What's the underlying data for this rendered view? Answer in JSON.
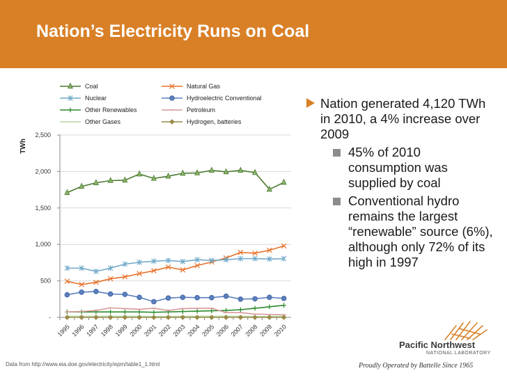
{
  "slide": {
    "title": "Nation’s Electricity Runs on Coal",
    "source_note": "Data from http://www.eia.doe.gov/electricity/epm/table1_1.html"
  },
  "bullets": {
    "main": "Nation generated 4,120 TWh in 2010, a 4% increase over 2009",
    "sub": [
      "45% of 2010 consumption was supplied by coal",
      "Conventional hydro remains the largest “renewable” source (6%), although only 72% of its high in 1997"
    ]
  },
  "logo": {
    "name": "Pacific Northwest",
    "lab": "NATIONAL LABORATORY",
    "tagline": "Proudly Operated by Battelle Since 1965"
  },
  "colors": {
    "title_bar": "#d98027",
    "bullet_triangle": "#d98027"
  },
  "chart_data": {
    "type": "line",
    "ylabel": "TWh",
    "ylim": [
      0,
      2500
    ],
    "yticks": [
      0,
      500,
      1000,
      1500,
      2000,
      2500
    ],
    "ytick_labels": [
      "-",
      "500",
      "1,000",
      "1,500",
      "2,000",
      "2,500"
    ],
    "x": [
      "1995",
      "1996",
      "1997",
      "1998",
      "1999",
      "2000",
      "2001",
      "2002",
      "2003",
      "2004",
      "2005",
      "2006",
      "2007",
      "2008",
      "2009",
      "2010"
    ],
    "legend_position": "top",
    "series": [
      {
        "name": "Coal",
        "color": "#4a7a2e",
        "marker": "triangle",
        "values": [
          1710,
          1795,
          1845,
          1875,
          1880,
          1965,
          1905,
          1935,
          1975,
          1980,
          2015,
          1995,
          2015,
          1985,
          1755,
          1850
        ]
      },
      {
        "name": "Natural Gas",
        "color": "#e8712a",
        "marker": "x",
        "values": [
          495,
          450,
          480,
          530,
          555,
          600,
          640,
          690,
          650,
          710,
          760,
          815,
          890,
          880,
          920,
          980
        ]
      },
      {
        "name": "Nuclear",
        "color": "#6fa9c9",
        "marker": "star",
        "values": [
          675,
          675,
          630,
          675,
          730,
          755,
          770,
          780,
          765,
          790,
          780,
          790,
          805,
          805,
          800,
          805
        ]
      },
      {
        "name": "Hydroelectric Conventional",
        "color": "#5b7fbe",
        "marker": "circle",
        "values": [
          310,
          345,
          355,
          320,
          315,
          275,
          215,
          265,
          275,
          270,
          270,
          290,
          250,
          255,
          275,
          260
        ]
      },
      {
        "name": "Other Renewables",
        "color": "#2a8a2a",
        "marker": "plus",
        "values": [
          75,
          75,
          75,
          75,
          75,
          75,
          70,
          75,
          80,
          85,
          90,
          95,
          105,
          125,
          145,
          165
        ]
      },
      {
        "name": "Petroleum",
        "color": "#d99a9a",
        "marker": "dash",
        "values": [
          75,
          80,
          95,
          130,
          120,
          110,
          125,
          95,
          120,
          125,
          125,
          65,
          65,
          45,
          40,
          35
        ]
      },
      {
        "name": "Other Gases",
        "color": "#b5d6a0",
        "marker": "none",
        "values": [
          15,
          15,
          15,
          15,
          15,
          15,
          12,
          12,
          15,
          15,
          15,
          15,
          15,
          12,
          12,
          15
        ]
      },
      {
        "name": "Hydrogen, batteries",
        "color": "#9a8a4a",
        "marker": "diamond",
        "values": [
          0,
          0,
          0,
          0,
          0,
          0,
          0,
          0,
          0,
          0,
          0,
          0,
          0,
          0,
          0,
          0
        ]
      }
    ]
  }
}
